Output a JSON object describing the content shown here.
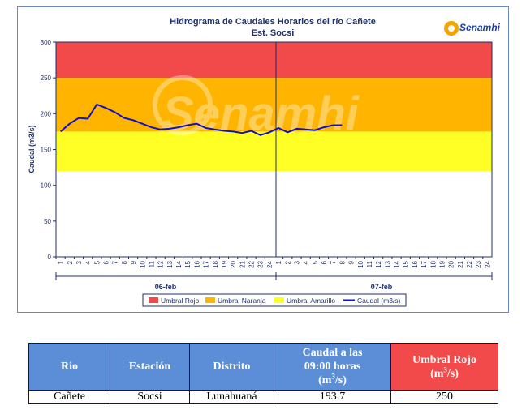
{
  "chart_data": {
    "type": "line",
    "title": "Hidrograma de Caudales Horarios del río Cañete",
    "subtitle": "Est. Socsi",
    "logo_text": "Senamhi",
    "watermark_text": "Senamhi",
    "ylabel": "Caudal  (m3/s)",
    "ylim": [
      0,
      300
    ],
    "yticks": [
      "0",
      "50",
      "100",
      "150",
      "200",
      "250",
      "300"
    ],
    "x_ticks": [
      "1",
      "2",
      "3",
      "4",
      "5",
      "6",
      "7",
      "8",
      "9",
      "10",
      "11",
      "12",
      "13",
      "14",
      "15",
      "16",
      "17",
      "18",
      "19",
      "20",
      "21",
      "22",
      "23",
      "24",
      "1",
      "2",
      "3",
      "4",
      "5",
      "6",
      "7",
      "8",
      "9",
      "10",
      "11",
      "12",
      "13",
      "14",
      "15",
      "16",
      "17",
      "18",
      "19",
      "20",
      "21",
      "22",
      "23",
      "24"
    ],
    "day_labels": [
      "06-feb",
      "07-feb"
    ],
    "bands": [
      {
        "name": "Umbral Rojo",
        "from": 250,
        "to": 300,
        "color": "#f24a4a"
      },
      {
        "name": "Umbral Naranja",
        "from": 175,
        "to": 250,
        "color": "#ffb400"
      },
      {
        "name": "Umbral Amarillo",
        "from": 120,
        "to": 175,
        "color": "#ffff26"
      }
    ],
    "series": [
      {
        "name": "Caudal (m3/s)",
        "color": "#1010c8",
        "values": [
          175,
          186,
          194,
          193,
          213,
          208,
          202,
          194,
          191,
          186,
          181,
          178,
          179,
          181,
          184,
          186,
          180,
          178,
          176,
          175,
          173,
          176,
          170,
          174,
          180,
          174,
          179,
          178,
          177,
          181,
          184,
          184
        ]
      }
    ],
    "legend": [
      "Umbral Rojo",
      "Umbral Naranja",
      "Umbral Amarillo",
      "Caudal (m3/s)"
    ],
    "legend_position": "bottom",
    "grid": false
  },
  "table": {
    "headers": {
      "rio": "Rio",
      "estacion": "Estación",
      "distrito": "Distrito",
      "caudal_a": "Caudal a las",
      "caudal_b": "09:00 horas",
      "caudal_unit": "(m",
      "caudal_unit_sup": "3",
      "caudal_unit_end": "/s)",
      "umbral": "Umbral Rojo",
      "umbral_unit": "(m",
      "umbral_unit_sup": "3",
      "umbral_unit_end": "/s)"
    },
    "row": {
      "rio": "Cañete",
      "estacion": "Socsi",
      "distrito": "Lunahuaná",
      "caudal": "193.7",
      "umbral": "250"
    }
  }
}
